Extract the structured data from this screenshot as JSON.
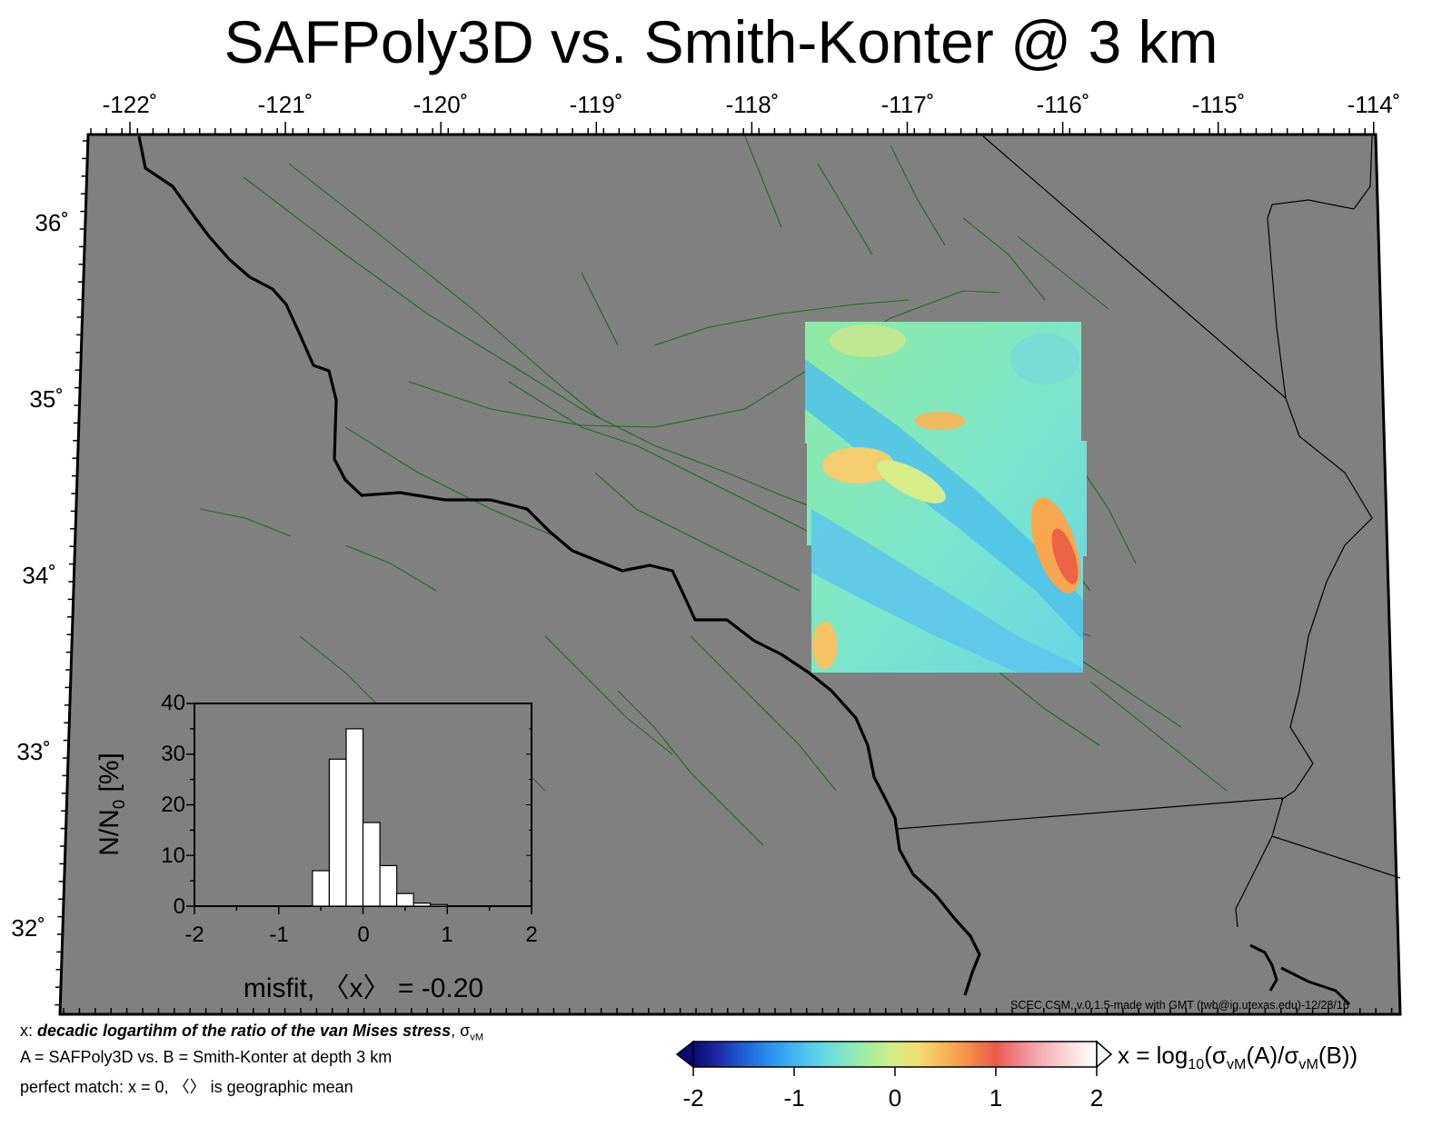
{
  "title": "SAFPoly3D vs. Smith-Konter @ 3 km",
  "map": {
    "lon_ticks": [
      "-122˚",
      "-121˚",
      "-120˚",
      "-119˚",
      "-118˚",
      "-117˚",
      "-116˚",
      "-115˚",
      "-114˚"
    ],
    "lat_ticks": [
      "36˚",
      "35˚",
      "34˚",
      "33˚",
      "32˚"
    ],
    "colors": {
      "land": "#808080",
      "faults": "#1f6b1f",
      "coastline": "#000000",
      "borders": "#000000"
    },
    "credit": "SCEC CSM, v.0.1.5-made with GMT (twb@ig.utexas.edu)-12/28/16"
  },
  "inset_histogram": {
    "y_ticks": [
      "40",
      "30",
      "20",
      "10",
      "0"
    ],
    "x_ticks": [
      "-2",
      "-1",
      "0",
      "1",
      "2"
    ],
    "ylabel_main": "N/N",
    "ylabel_sub": "0",
    "ylabel_tail": " [%]",
    "xlabel": "misfit, 〈x〉 = -0.20",
    "chart_data": {
      "type": "bar",
      "x": [
        -0.5,
        -0.3,
        -0.1,
        0.1,
        0.3,
        0.5,
        0.7,
        0.9
      ],
      "values": [
        7,
        29,
        35,
        16.5,
        8,
        2.5,
        0.6,
        0.3
      ],
      "xlim": [
        -2,
        2
      ],
      "ylim": [
        0,
        40
      ]
    }
  },
  "notes": {
    "line1_prefix": "x: ",
    "line1_italic": "decadic logartihm of the ratio of the van Mises stress",
    "line1_suffix": ", σ",
    "line1_sub": "vM",
    "line2": "A = SAFPoly3D vs.  B = Smith-Konter at depth 3 km",
    "line3": "perfect match: x = 0, 〈〉 is geographic mean"
  },
  "colorbar": {
    "ticks": [
      "-2",
      "-1",
      "0",
      "1",
      "2"
    ],
    "range": [
      -2,
      2
    ],
    "label_prefix": "x = log",
    "label_sub1": "10",
    "label_mid1": "(σ",
    "label_sub2": "vM",
    "label_mid2": "(A)/σ",
    "label_sub3": "vM",
    "label_end": "(B))",
    "stops": [
      "#0a0a70",
      "#1e2aa8",
      "#1f5fd8",
      "#2b8ef0",
      "#3fb6f2",
      "#5ed4e8",
      "#80e6c6",
      "#a8ee9a",
      "#d4ee84",
      "#f2dc70",
      "#f6b455",
      "#f38a46",
      "#ec5a4c",
      "#f08890",
      "#f6b6bc",
      "#fbdde0",
      "#ffffff"
    ]
  }
}
